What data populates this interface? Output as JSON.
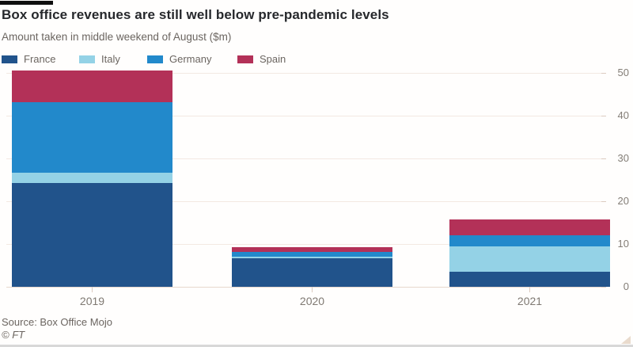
{
  "chart_data": {
    "type": "bar",
    "stacked": true,
    "title": "Box office revenues are still well below pre-pandemic levels",
    "subtitle": "Amount taken in middle weekend of August ($m)",
    "categories": [
      "2019",
      "2020",
      "2021"
    ],
    "series": [
      {
        "name": "France",
        "color": "#21538b",
        "values": [
          24.3,
          6.7,
          3.6
        ]
      },
      {
        "name": "Italy",
        "color": "#94d2e6",
        "values": [
          2.4,
          0.3,
          5.9
        ]
      },
      {
        "name": "Germany",
        "color": "#2289cb",
        "values": [
          16.4,
          1.1,
          2.6
        ]
      },
      {
        "name": "Spain",
        "color": "#b33158",
        "values": [
          7.5,
          1.2,
          3.6
        ]
      }
    ],
    "totals": [
      50.6,
      9.3,
      15.7
    ],
    "xlabel": "",
    "ylabel": "",
    "yticks": [
      0,
      10,
      20,
      30,
      40,
      50
    ],
    "ylim": [
      0,
      50
    ],
    "grid": true,
    "y_axis_side": "right",
    "legend_position": "top"
  },
  "footer": {
    "source": "Source: Box Office Mojo",
    "credit": "© FT"
  }
}
